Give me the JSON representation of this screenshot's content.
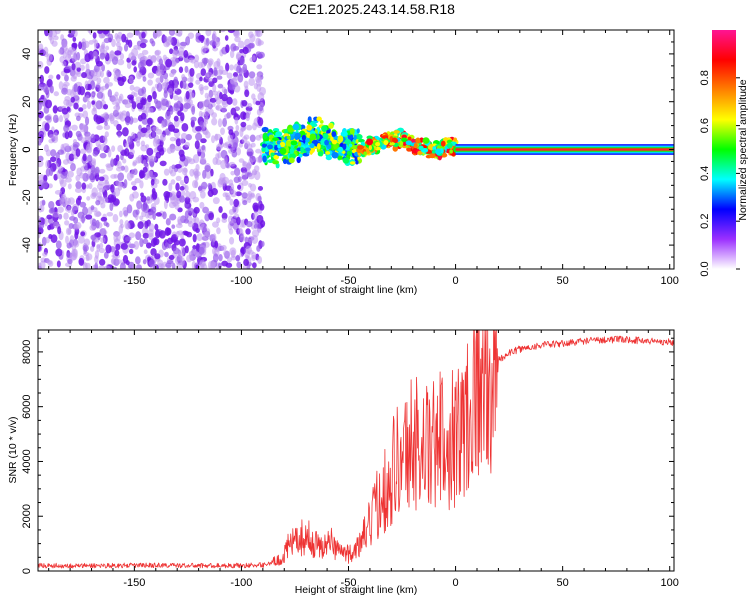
{
  "figure": {
    "title": "C2E1.2025.243.14.58.R18"
  },
  "chart_data": [
    {
      "type": "heatmap",
      "name": "spectrogram",
      "title": "C2E1.2025.243.14.58.R18",
      "xlabel": "Height of straight line (km)",
      "ylabel": "Frequency (Hz)",
      "xlim": [
        -195,
        102
      ],
      "ylim": [
        -50,
        50
      ],
      "xticks": [
        -150,
        -100,
        -50,
        0,
        50,
        100
      ],
      "yticks": [
        -40,
        -20,
        0,
        20,
        40
      ],
      "colorbar": {
        "label": "Normalized spectral amplitude",
        "range": [
          0.0,
          1.0
        ],
        "ticks": [
          0.0,
          0.2,
          0.4,
          0.6,
          0.8
        ],
        "tick_labels": [
          "0.0",
          "0.2",
          "0.4",
          "0.6",
          "0.8"
        ],
        "colormap": [
          "#ffffff",
          "#9b30ff",
          "#0000ff",
          "#00ffff",
          "#00ff00",
          "#ffff00",
          "#ff8000",
          "#ff0000",
          "#ff1493"
        ]
      },
      "regions": [
        {
          "x_range": [
            -195,
            -90
          ],
          "freq_range": [
            -50,
            50
          ],
          "amplitude_range": [
            0.0,
            0.15
          ],
          "description": "noise"
        },
        {
          "x_range": [
            -90,
            -45
          ],
          "freq_center": 3,
          "freq_spread": 8,
          "amplitude_range": [
            0.1,
            0.5
          ]
        },
        {
          "x_range": [
            -45,
            0
          ],
          "freq_center": 2,
          "freq_spread": 4,
          "amplitude_range": [
            0.2,
            0.8
          ]
        },
        {
          "x_range": [
            0,
            102
          ],
          "freq_center": 0,
          "freq_spread": 1,
          "amplitude_range": [
            0.9,
            1.0
          ]
        }
      ]
    },
    {
      "type": "line",
      "name": "snr",
      "xlabel": "Height of straight line (km)",
      "ylabel": "SNR (10 * v/v)",
      "xlim": [
        -195,
        102
      ],
      "ylim": [
        0,
        8800
      ],
      "xticks": [
        -150,
        -100,
        -50,
        0,
        50,
        100
      ],
      "yticks": [
        0,
        2000,
        4000,
        6000,
        8000
      ],
      "color": "#ee3333",
      "series": [
        {
          "name": "SNR",
          "x": [
            -195,
            -180,
            -160,
            -140,
            -120,
            -100,
            -90,
            -82,
            -78,
            -74,
            -70,
            -66,
            -62,
            -58,
            -55,
            -50,
            -45,
            -40,
            -35,
            -32,
            -28,
            -24,
            -20,
            -16,
            -12,
            -8,
            -4,
            0,
            4,
            7,
            10,
            14,
            18,
            22,
            26,
            30,
            40,
            50,
            60,
            70,
            80,
            90,
            102
          ],
          "values": [
            200,
            190,
            200,
            210,
            195,
            200,
            220,
            400,
            900,
            1100,
            1300,
            1000,
            900,
            1050,
            800,
            600,
            900,
            1700,
            2800,
            3200,
            4000,
            4200,
            4800,
            4600,
            4400,
            4700,
            4900,
            5000,
            5200,
            6500,
            7000,
            7300,
            7600,
            7800,
            8000,
            8100,
            8250,
            8300,
            8400,
            8450,
            8450,
            8400,
            8350
          ]
        }
      ]
    }
  ]
}
